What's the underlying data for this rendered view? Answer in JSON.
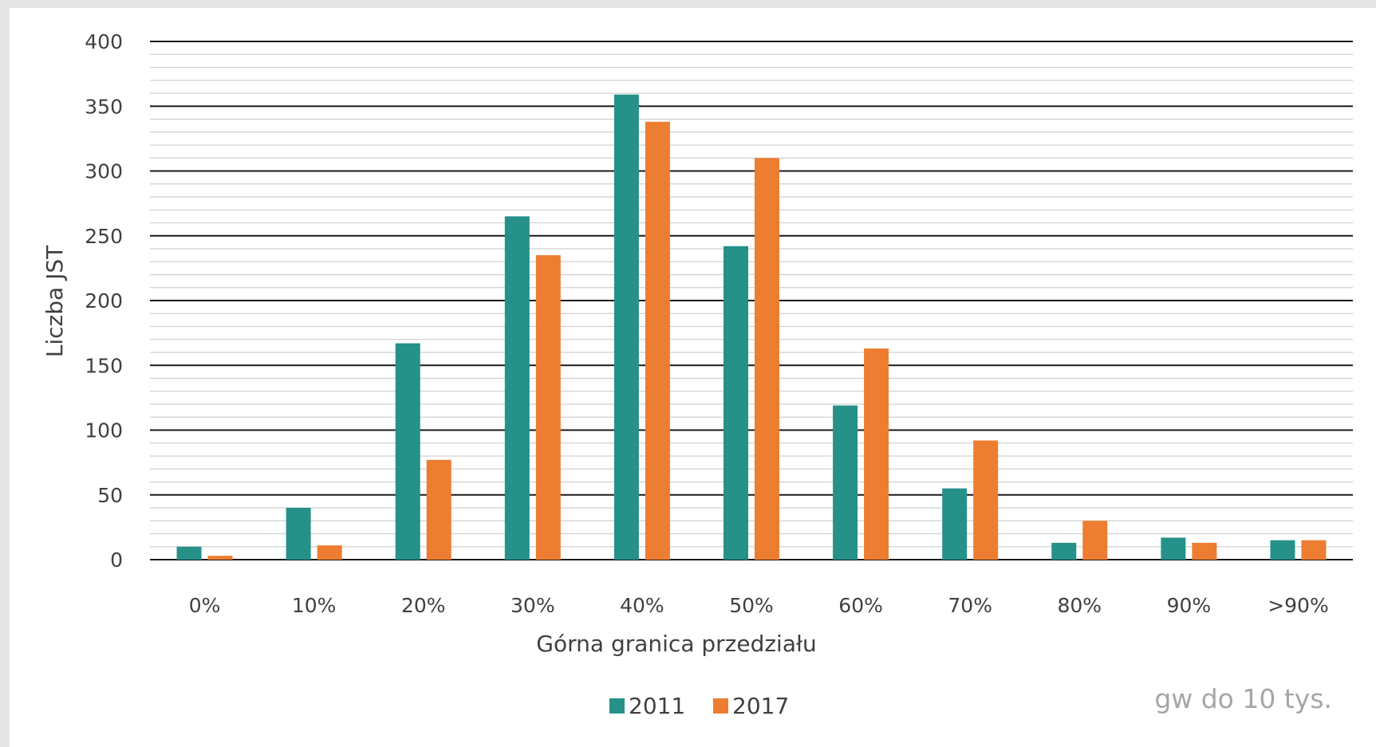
{
  "chart_data": {
    "type": "bar",
    "categories": [
      "0%",
      "10%",
      "20%",
      "30%",
      "40%",
      "50%",
      "60%",
      "70%",
      "80%",
      "90%",
      ">90%"
    ],
    "series": [
      {
        "name": "2011",
        "color": "#259189",
        "values": [
          10,
          40,
          167,
          265,
          359,
          242,
          119,
          55,
          13,
          17,
          15
        ]
      },
      {
        "name": "2017",
        "color": "#ed7d31",
        "values": [
          3,
          11,
          77,
          235,
          338,
          310,
          163,
          92,
          30,
          13,
          15
        ]
      }
    ],
    "xlabel": "Górna granica przedziału",
    "ylabel": "Liczba JST",
    "ylim": [
      0,
      400
    ],
    "yticks": [
      0,
      50,
      100,
      150,
      200,
      250,
      300,
      350,
      400
    ],
    "grid": {
      "major_step": 50,
      "minor_step": 10
    },
    "legend_position": "bottom",
    "note": "gw do 10 tys."
  }
}
